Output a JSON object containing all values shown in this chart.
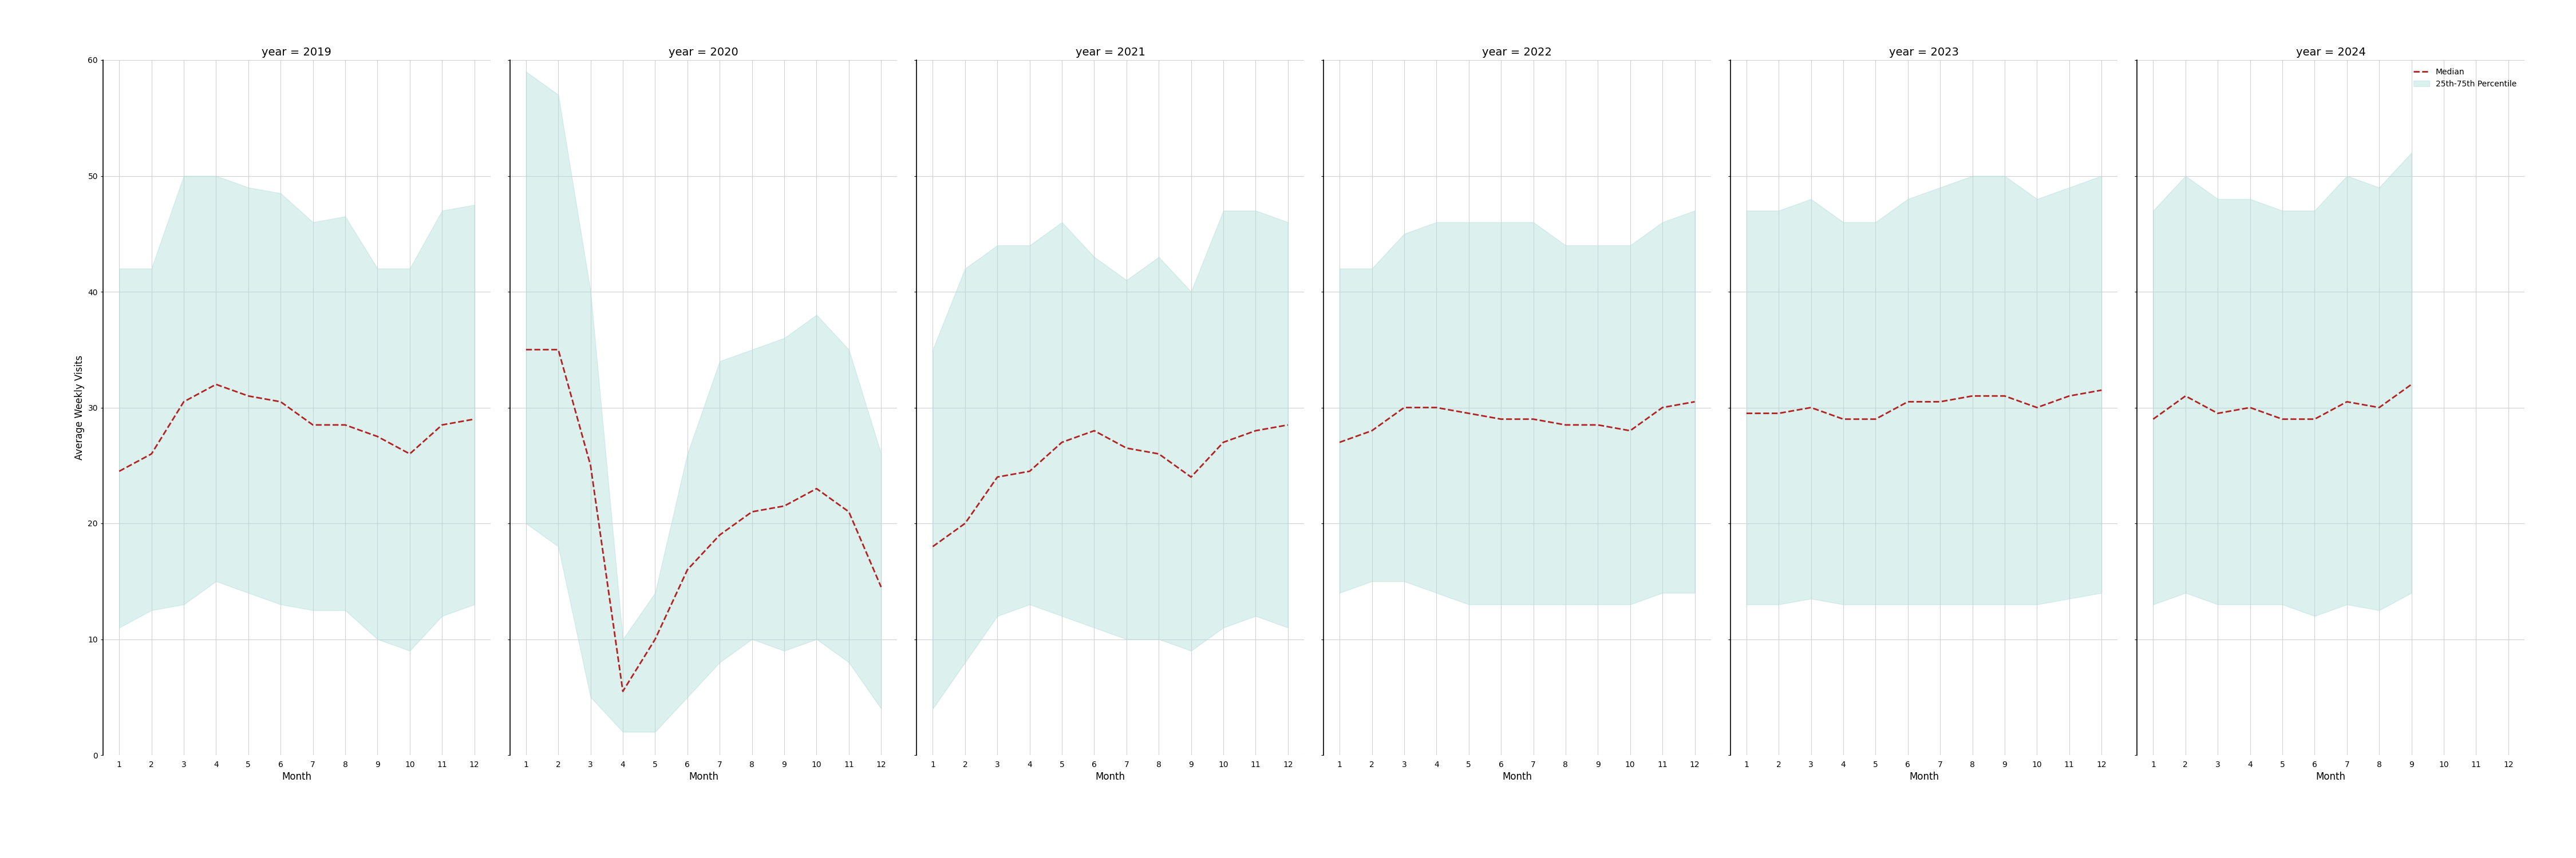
{
  "years": [
    2019,
    2020,
    2021,
    2022,
    2023,
    2024
  ],
  "ylabel": "Average Weekly Visits",
  "xlabel": "Month",
  "ylim": [
    0,
    60
  ],
  "yticks": [
    0,
    10,
    20,
    30,
    40,
    50,
    60
  ],
  "fill_color": "#b2dfdb",
  "fill_alpha": 0.45,
  "line_color": "#b22222",
  "line_style": "--",
  "line_width": 2.0,
  "background_color": "#ffffff",
  "grid_color": "#d0d0d0",
  "legend_labels": [
    "Median",
    "25th-75th Percentile"
  ],
  "title_fontsize": 14,
  "label_fontsize": 12,
  "tick_fontsize": 10,
  "data": {
    "2019": {
      "months": [
        1,
        2,
        3,
        4,
        5,
        6,
        7,
        8,
        9,
        10,
        11,
        12
      ],
      "median": [
        24.5,
        26.0,
        30.5,
        32.0,
        31.0,
        30.5,
        28.5,
        28.5,
        27.5,
        26.0,
        28.5,
        29.0
      ],
      "p25": [
        11.0,
        12.5,
        13.0,
        15.0,
        14.0,
        13.0,
        12.5,
        12.5,
        10.0,
        9.0,
        12.0,
        13.0
      ],
      "p75": [
        42.0,
        42.0,
        50.0,
        50.0,
        49.0,
        48.5,
        46.0,
        46.5,
        42.0,
        42.0,
        47.0,
        47.5
      ]
    },
    "2020": {
      "months": [
        1,
        2,
        3,
        4,
        5,
        6,
        7,
        8,
        9,
        10,
        11,
        12
      ],
      "median": [
        35.0,
        35.0,
        25.0,
        5.5,
        10.0,
        16.0,
        19.0,
        21.0,
        21.5,
        23.0,
        21.0,
        14.5
      ],
      "p25": [
        20.0,
        18.0,
        5.0,
        2.0,
        2.0,
        5.0,
        8.0,
        10.0,
        9.0,
        10.0,
        8.0,
        4.0
      ],
      "p75": [
        59.0,
        57.0,
        40.0,
        10.0,
        14.0,
        26.0,
        34.0,
        35.0,
        36.0,
        38.0,
        35.0,
        26.0
      ]
    },
    "2021": {
      "months": [
        1,
        2,
        3,
        4,
        5,
        6,
        7,
        8,
        9,
        10,
        11,
        12
      ],
      "median": [
        18.0,
        20.0,
        24.0,
        24.5,
        27.0,
        28.0,
        26.5,
        26.0,
        24.0,
        27.0,
        28.0,
        28.5
      ],
      "p25": [
        4.0,
        8.0,
        12.0,
        13.0,
        12.0,
        11.0,
        10.0,
        10.0,
        9.0,
        11.0,
        12.0,
        11.0
      ],
      "p75": [
        35.0,
        42.0,
        44.0,
        44.0,
        46.0,
        43.0,
        41.0,
        43.0,
        40.0,
        47.0,
        47.0,
        46.0
      ]
    },
    "2022": {
      "months": [
        1,
        2,
        3,
        4,
        5,
        6,
        7,
        8,
        9,
        10,
        11,
        12
      ],
      "median": [
        27.0,
        28.0,
        30.0,
        30.0,
        29.5,
        29.0,
        29.0,
        28.5,
        28.5,
        28.0,
        30.0,
        30.5
      ],
      "p25": [
        14.0,
        15.0,
        15.0,
        14.0,
        13.0,
        13.0,
        13.0,
        13.0,
        13.0,
        13.0,
        14.0,
        14.0
      ],
      "p75": [
        42.0,
        42.0,
        45.0,
        46.0,
        46.0,
        46.0,
        46.0,
        44.0,
        44.0,
        44.0,
        46.0,
        47.0
      ]
    },
    "2023": {
      "months": [
        1,
        2,
        3,
        4,
        5,
        6,
        7,
        8,
        9,
        10,
        11,
        12
      ],
      "median": [
        29.5,
        29.5,
        30.0,
        29.0,
        29.0,
        30.5,
        30.5,
        31.0,
        31.0,
        30.0,
        31.0,
        31.5
      ],
      "p25": [
        13.0,
        13.0,
        13.5,
        13.0,
        13.0,
        13.0,
        13.0,
        13.0,
        13.0,
        13.0,
        13.5,
        14.0
      ],
      "p75": [
        47.0,
        47.0,
        48.0,
        46.0,
        46.0,
        48.0,
        49.0,
        50.0,
        50.0,
        48.0,
        49.0,
        50.0
      ]
    },
    "2024": {
      "months": [
        1,
        2,
        3,
        4,
        5,
        6,
        7,
        8,
        9
      ],
      "median": [
        29.0,
        31.0,
        29.5,
        30.0,
        29.0,
        29.0,
        30.5,
        30.0,
        32.0
      ],
      "p25": [
        13.0,
        14.0,
        13.0,
        13.0,
        13.0,
        12.0,
        13.0,
        12.5,
        14.0
      ],
      "p75": [
        47.0,
        50.0,
        48.0,
        48.0,
        47.0,
        47.0,
        50.0,
        49.0,
        52.0
      ]
    }
  }
}
